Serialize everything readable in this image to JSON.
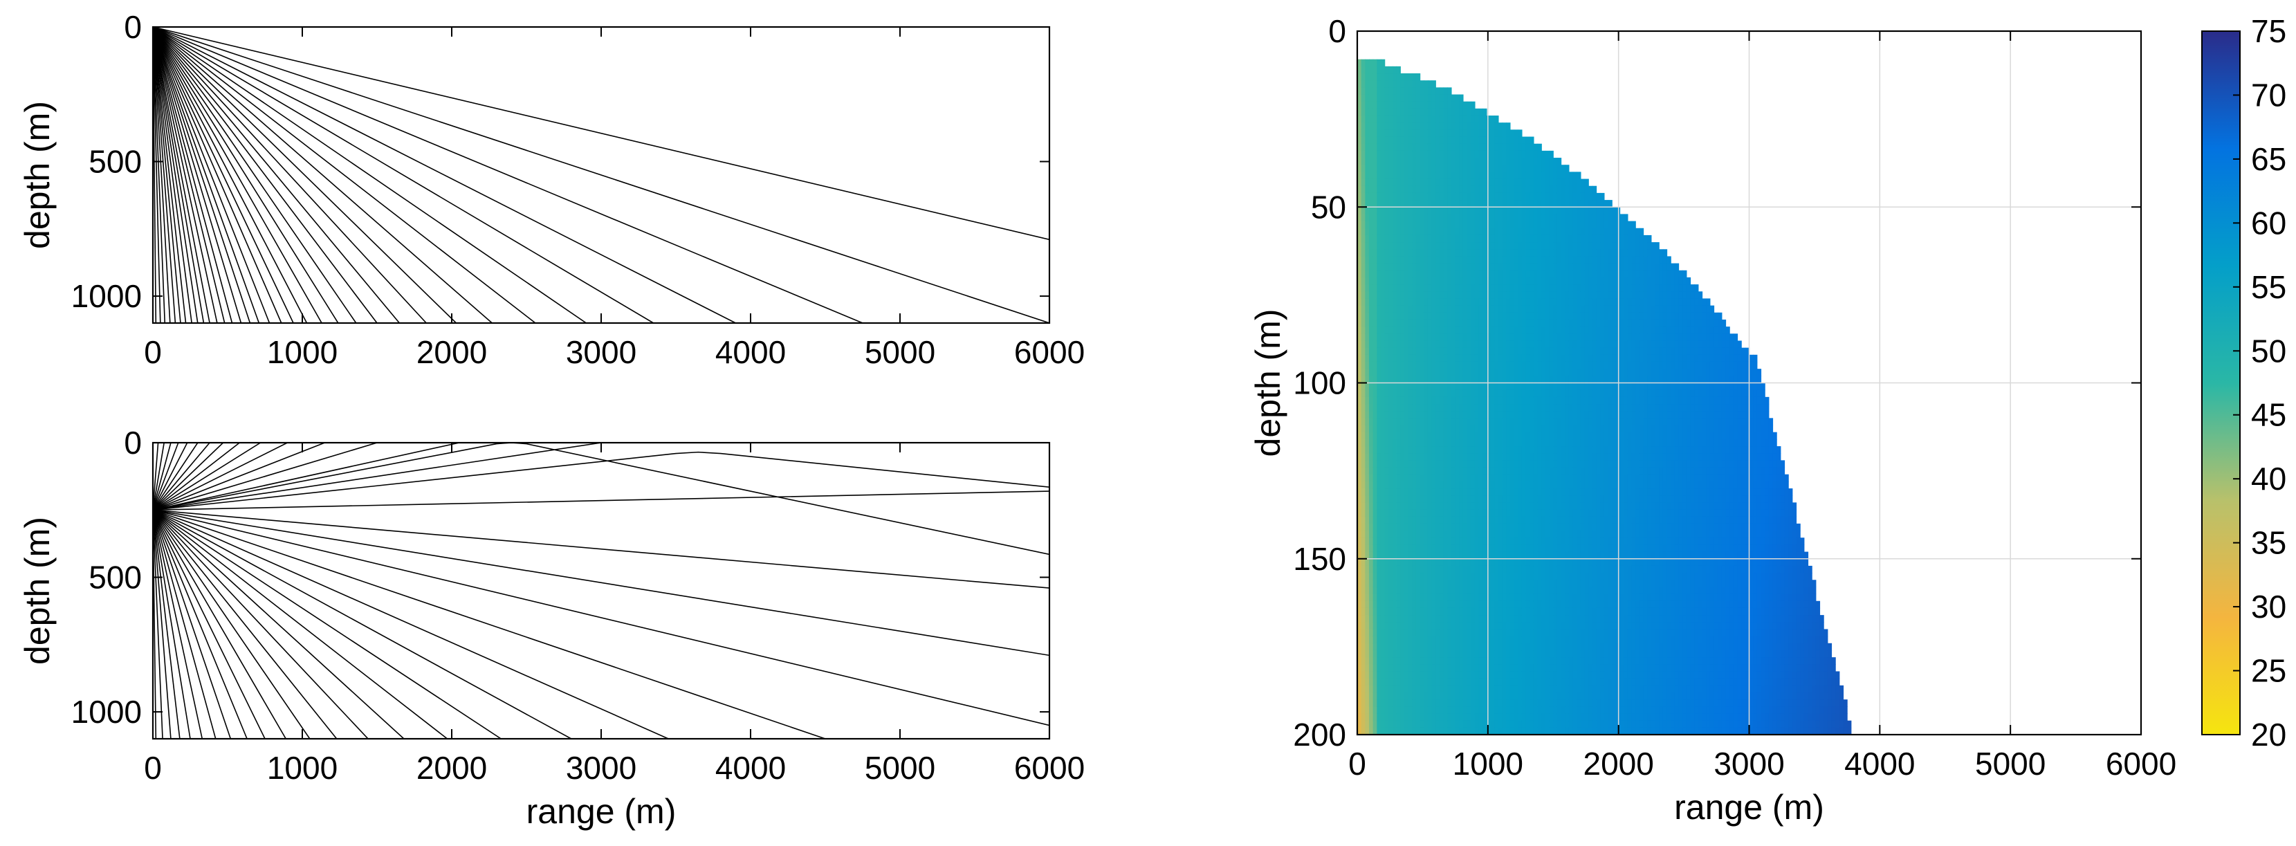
{
  "figure": {
    "background": "#ffffff",
    "axis_color": "#000000",
    "ray_color": "#000000",
    "grid_color": "#d9d9d9"
  },
  "chart_data": [
    {
      "type": "line",
      "panel": "top-left",
      "xlabel": "",
      "ylabel": "depth (m)",
      "xlim": [
        0,
        6000
      ],
      "ylim": [
        0,
        1100
      ],
      "y_reversed": true,
      "xticks": [
        0,
        1000,
        2000,
        3000,
        4000,
        5000,
        6000
      ],
      "yticks": [
        0,
        500,
        1000
      ],
      "grid": false,
      "source_depth": 0,
      "series": [
        {
          "x": [
            0,
            6000
          ],
          "y": [
            0,
            790
          ]
        },
        {
          "x": [
            0,
            6000
          ],
          "y": [
            0,
            1100
          ]
        },
        {
          "x": [
            0,
            4750
          ],
          "y": [
            0,
            1100
          ]
        },
        {
          "x": [
            0,
            3900
          ],
          "y": [
            0,
            1100
          ]
        },
        {
          "x": [
            0,
            3350
          ],
          "y": [
            0,
            1100
          ]
        },
        {
          "x": [
            0,
            2900
          ],
          "y": [
            0,
            1100
          ]
        },
        {
          "x": [
            0,
            2560
          ],
          "y": [
            0,
            1100
          ]
        },
        {
          "x": [
            0,
            2270
          ],
          "y": [
            0,
            1100
          ]
        },
        {
          "x": [
            0,
            2030
          ],
          "y": [
            0,
            1100
          ]
        },
        {
          "x": [
            0,
            1830
          ],
          "y": [
            0,
            1100
          ]
        },
        {
          "x": [
            0,
            1650
          ],
          "y": [
            0,
            1100
          ]
        },
        {
          "x": [
            0,
            1500
          ],
          "y": [
            0,
            1100
          ]
        },
        {
          "x": [
            0,
            1360
          ],
          "y": [
            0,
            1100
          ]
        },
        {
          "x": [
            0,
            1240
          ],
          "y": [
            0,
            1100
          ]
        },
        {
          "x": [
            0,
            1130
          ],
          "y": [
            0,
            1100
          ]
        },
        {
          "x": [
            0,
            1030
          ],
          "y": [
            0,
            1100
          ]
        },
        {
          "x": [
            0,
            940
          ],
          "y": [
            0,
            1100
          ]
        },
        {
          "x": [
            0,
            860
          ],
          "y": [
            0,
            1100
          ]
        },
        {
          "x": [
            0,
            780
          ],
          "y": [
            0,
            1100
          ]
        },
        {
          "x": [
            0,
            710
          ],
          "y": [
            0,
            1100
          ]
        },
        {
          "x": [
            0,
            650
          ],
          "y": [
            0,
            1100
          ]
        },
        {
          "x": [
            0,
            590
          ],
          "y": [
            0,
            1100
          ]
        },
        {
          "x": [
            0,
            530
          ],
          "y": [
            0,
            1100
          ]
        },
        {
          "x": [
            0,
            480
          ],
          "y": [
            0,
            1100
          ]
        },
        {
          "x": [
            0,
            430
          ],
          "y": [
            0,
            1100
          ]
        },
        {
          "x": [
            0,
            380
          ],
          "y": [
            0,
            1100
          ]
        },
        {
          "x": [
            0,
            340
          ],
          "y": [
            0,
            1100
          ]
        },
        {
          "x": [
            0,
            300
          ],
          "y": [
            0,
            1100
          ]
        },
        {
          "x": [
            0,
            260
          ],
          "y": [
            0,
            1100
          ]
        },
        {
          "x": [
            0,
            220
          ],
          "y": [
            0,
            1100
          ]
        },
        {
          "x": [
            0,
            185
          ],
          "y": [
            0,
            1100
          ]
        },
        {
          "x": [
            0,
            150
          ],
          "y": [
            0,
            1100
          ]
        },
        {
          "x": [
            0,
            115
          ],
          "y": [
            0,
            1100
          ]
        },
        {
          "x": [
            0,
            80
          ],
          "y": [
            0,
            1100
          ]
        },
        {
          "x": [
            0,
            50
          ],
          "y": [
            0,
            1100
          ]
        },
        {
          "x": [
            0,
            20
          ],
          "y": [
            0,
            1100
          ]
        }
      ]
    },
    {
      "type": "line",
      "panel": "bottom-left",
      "xlabel": "range (m)",
      "ylabel": "depth (m)",
      "xlim": [
        0,
        6000
      ],
      "ylim": [
        0,
        1100
      ],
      "y_reversed": true,
      "xticks": [
        0,
        1000,
        2000,
        3000,
        4000,
        5000,
        6000
      ],
      "yticks": [
        0,
        500,
        1000
      ],
      "grid": false,
      "source_depth": 250,
      "series": [
        {
          "x": [
            0,
            2300,
            2400,
            2500,
            6000
          ],
          "y": [
            250,
            4,
            0,
            4,
            415
          ]
        },
        {
          "x": [
            0,
            3500,
            3650,
            3800,
            6000
          ],
          "y": [
            250,
            40,
            35,
            40,
            165
          ]
        },
        {
          "x": [
            0,
            6000
          ],
          "y": [
            250,
            180
          ]
        },
        {
          "x": [
            0,
            6000
          ],
          "y": [
            250,
            540
          ]
        },
        {
          "x": [
            0,
            6000
          ],
          "y": [
            250,
            790
          ]
        },
        {
          "x": [
            0,
            6000
          ],
          "y": [
            250,
            1050
          ]
        },
        {
          "x": [
            0,
            3000
          ],
          "y": [
            250,
            0
          ]
        },
        {
          "x": [
            0,
            2050
          ],
          "y": [
            250,
            0
          ]
        },
        {
          "x": [
            0,
            1500
          ],
          "y": [
            250,
            0
          ]
        },
        {
          "x": [
            0,
            1150
          ],
          "y": [
            250,
            0
          ]
        },
        {
          "x": [
            0,
            900
          ],
          "y": [
            250,
            0
          ]
        },
        {
          "x": [
            0,
            720
          ],
          "y": [
            250,
            0
          ]
        },
        {
          "x": [
            0,
            580
          ],
          "y": [
            250,
            0
          ]
        },
        {
          "x": [
            0,
            470
          ],
          "y": [
            250,
            0
          ]
        },
        {
          "x": [
            0,
            380
          ],
          "y": [
            250,
            0
          ]
        },
        {
          "x": [
            0,
            300
          ],
          "y": [
            250,
            0
          ]
        },
        {
          "x": [
            0,
            230
          ],
          "y": [
            250,
            0
          ]
        },
        {
          "x": [
            0,
            170
          ],
          "y": [
            250,
            0
          ]
        },
        {
          "x": [
            0,
            120
          ],
          "y": [
            250,
            0
          ]
        },
        {
          "x": [
            0,
            75
          ],
          "y": [
            250,
            0
          ]
        },
        {
          "x": [
            0,
            35
          ],
          "y": [
            250,
            0
          ]
        },
        {
          "x": [
            0,
            4500
          ],
          "y": [
            250,
            1100
          ]
        },
        {
          "x": [
            0,
            3450
          ],
          "y": [
            250,
            1100
          ]
        },
        {
          "x": [
            0,
            2800
          ],
          "y": [
            250,
            1100
          ]
        },
        {
          "x": [
            0,
            2330
          ],
          "y": [
            250,
            1100
          ]
        },
        {
          "x": [
            0,
            1970
          ],
          "y": [
            250,
            1100
          ]
        },
        {
          "x": [
            0,
            1680
          ],
          "y": [
            250,
            1100
          ]
        },
        {
          "x": [
            0,
            1440
          ],
          "y": [
            250,
            1100
          ]
        },
        {
          "x": [
            0,
            1230
          ],
          "y": [
            250,
            1100
          ]
        },
        {
          "x": [
            0,
            1050
          ],
          "y": [
            250,
            1100
          ]
        },
        {
          "x": [
            0,
            890
          ],
          "y": [
            250,
            1100
          ]
        },
        {
          "x": [
            0,
            750
          ],
          "y": [
            250,
            1100
          ]
        },
        {
          "x": [
            0,
            630
          ],
          "y": [
            250,
            1100
          ]
        },
        {
          "x": [
            0,
            520
          ],
          "y": [
            250,
            1100
          ]
        },
        {
          "x": [
            0,
            420
          ],
          "y": [
            250,
            1100
          ]
        },
        {
          "x": [
            0,
            330
          ],
          "y": [
            250,
            1100
          ]
        },
        {
          "x": [
            0,
            250
          ],
          "y": [
            250,
            1100
          ]
        },
        {
          "x": [
            0,
            180
          ],
          "y": [
            250,
            1100
          ]
        },
        {
          "x": [
            0,
            120
          ],
          "y": [
            250,
            1100
          ]
        },
        {
          "x": [
            0,
            65
          ],
          "y": [
            250,
            1100
          ]
        },
        {
          "x": [
            0,
            20
          ],
          "y": [
            250,
            1100
          ]
        }
      ]
    },
    {
      "type": "heatmap",
      "panel": "right",
      "xlabel": "range (m)",
      "ylabel": "depth (m)",
      "xlim": [
        0,
        6000
      ],
      "ylim": [
        0,
        200
      ],
      "y_reversed": true,
      "xticks": [
        0,
        1000,
        2000,
        3000,
        4000,
        5000,
        6000
      ],
      "yticks": [
        0,
        50,
        100,
        150,
        200
      ],
      "grid": true,
      "boundary": {
        "range": [
          0,
          100,
          200,
          400,
          600,
          800,
          1000,
          1200,
          1400,
          1600,
          1800,
          2000,
          2200,
          2400,
          2600,
          2800,
          2950,
          3050,
          3300,
          3550,
          3800
        ],
        "depth": [
          7,
          7.5,
          9,
          12,
          15,
          18.5,
          23,
          27.5,
          32.5,
          38,
          44,
          50.5,
          57,
          64.5,
          72.5,
          82,
          89,
          93,
          128,
          165,
          200
        ]
      },
      "colorbar": {
        "location": "right",
        "range": [
          20,
          75
        ],
        "ticks": [
          20,
          25,
          30,
          35,
          40,
          45,
          50,
          55,
          60,
          65,
          70,
          75
        ],
        "colormap": [
          "#f5e50f",
          "#f4b53f",
          "#b8c16b",
          "#2ab7a6",
          "#049fc9",
          "#0373e0",
          "#2a2c8a"
        ]
      },
      "field": {
        "near_source_min": 30,
        "column_value": 47,
        "boundary_value": 66,
        "deep_boundary_value": 70
      }
    }
  ]
}
